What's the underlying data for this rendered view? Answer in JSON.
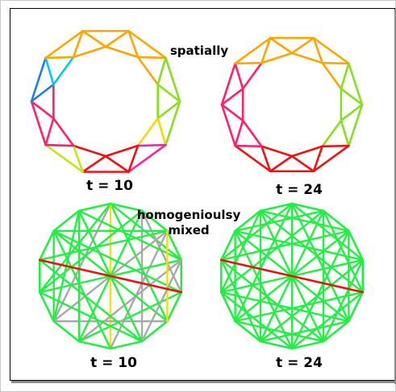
{
  "caption_top": "spatially",
  "caption_bottom_line1": "homogenioulsy",
  "caption_bottom_line2": "mixed",
  "panels": [
    {
      "id": "spatial-t10",
      "time_label": "t = 10",
      "style": "spatial"
    },
    {
      "id": "spatial-t24",
      "time_label": "t = 24",
      "style": "spatial"
    },
    {
      "id": "mixed-t10",
      "time_label": "t = 10",
      "style": "mixed"
    },
    {
      "id": "mixed-t24",
      "time_label": "t = 24",
      "style": "mixed"
    }
  ],
  "graph": {
    "outer_nodes": 14,
    "inner_nodes": 14
  },
  "colors": {
    "spatial_t10": [
      "#ffa500",
      "#ffa500",
      "#ffa500",
      "#ffa500",
      "#86e01e",
      "#86e01e",
      "#86e01e",
      "#ffd700",
      "#ff1fb0",
      "#ee1111",
      "#ee1111",
      "#ee1111",
      "#c2e418",
      "#ff1f6e",
      "#ff1f6e",
      "#ff1f6e",
      "#1f7fe0",
      "#00c8f0",
      "#ffa500",
      "#ffa500"
    ],
    "spatial_t24": [
      "#ffa500",
      "#ffa500",
      "#ffa500",
      "#ffa500",
      "#86e01e",
      "#86e01e",
      "#86e01e",
      "#86e01e",
      "#ee1111",
      "#ee1111",
      "#ee1111",
      "#ee1111",
      "#ee1111",
      "#ff1f6e",
      "#ff1f6e",
      "#ff1f6e",
      "#ff1f6e",
      "#ff1f6e",
      "#ffa500",
      "#ffa500"
    ],
    "mixed_green": "#22ee44",
    "mixed_gray": "#a8a8a8",
    "mixed_yellow": "#f0e010",
    "mixed_red": "#ee1111"
  }
}
